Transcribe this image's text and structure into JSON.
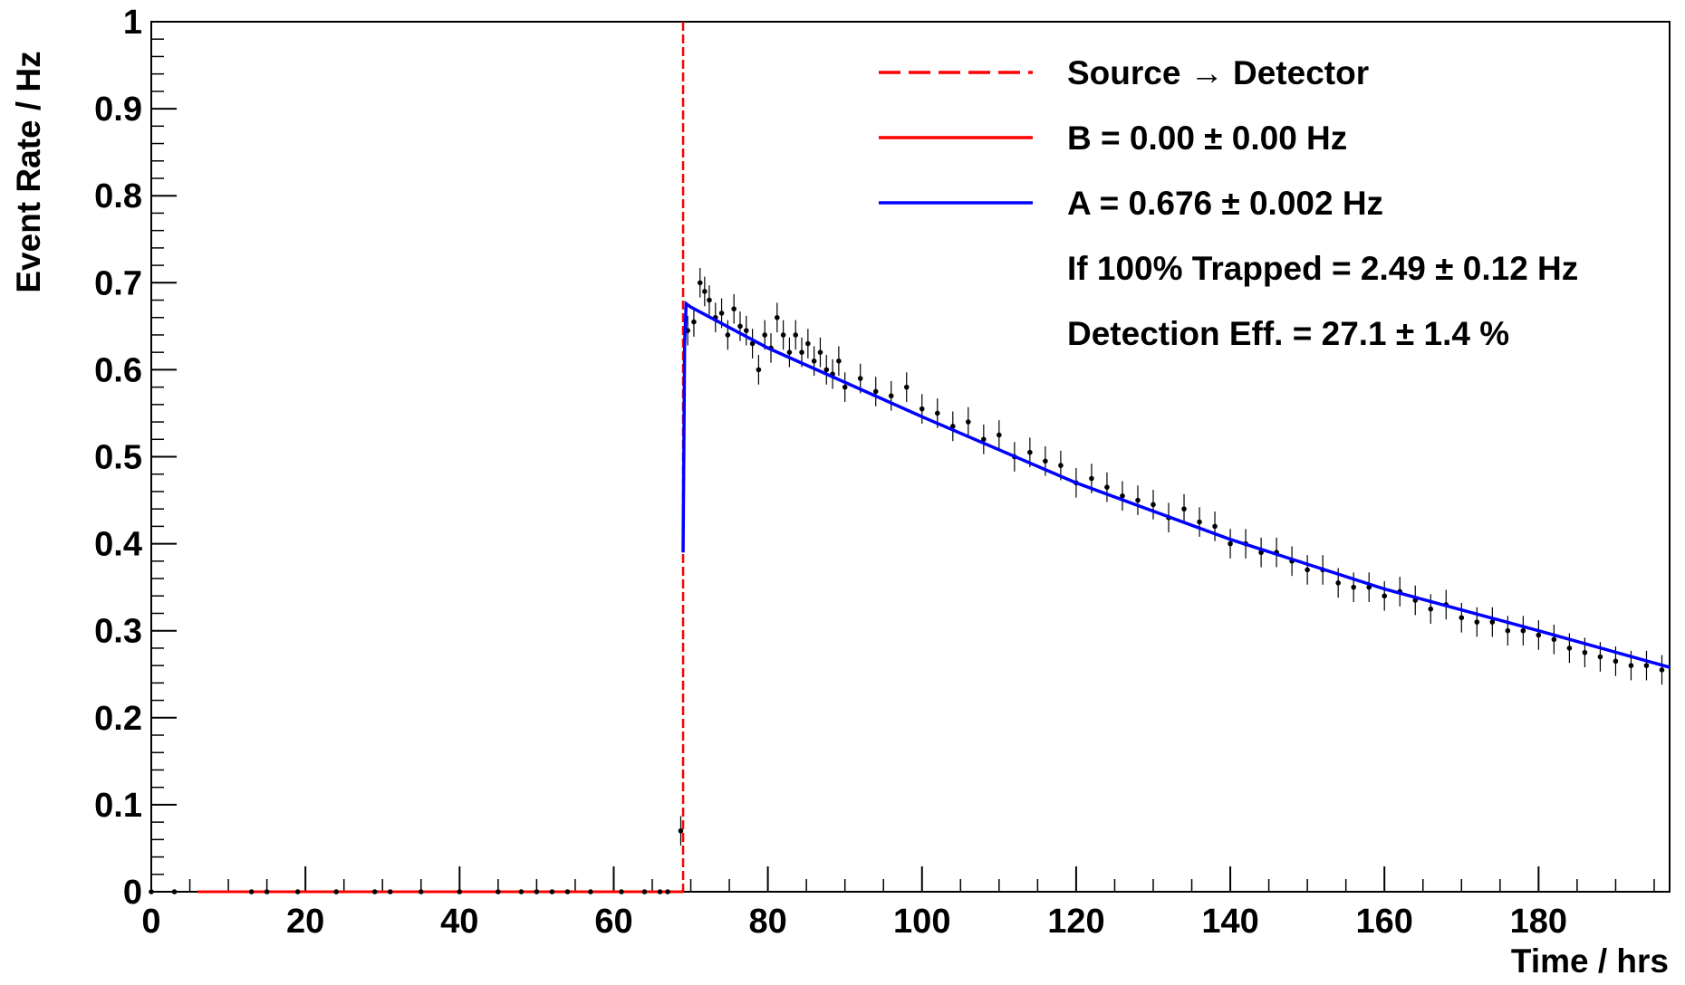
{
  "chart_data": {
    "type": "scatter",
    "title": "",
    "xlabel": "Time / hrs",
    "ylabel": "Event Rate / Hz",
    "xlim": [
      0,
      197
    ],
    "ylim": [
      0,
      1
    ],
    "x_ticks": [
      "0",
      "20",
      "40",
      "60",
      "80",
      "100",
      "120",
      "140",
      "160",
      "180"
    ],
    "y_ticks": [
      "0",
      "0.1",
      "0.2",
      "0.3",
      "0.4",
      "0.5",
      "0.6",
      "0.7",
      "0.8",
      "0.9",
      "1"
    ],
    "grid": false,
    "legend_position": "top-right",
    "legend": [
      {
        "label": "Source → Detector",
        "style": "dashed",
        "color": "#ff0000"
      },
      {
        "label": "B = 0.00 ± 0.00 Hz",
        "style": "solid",
        "color": "#ff0000"
      },
      {
        "label": "A = 0.676 ± 0.002 Hz",
        "style": "solid",
        "color": "#0000ff"
      },
      {
        "label": "If 100% Trapped = 2.49 ± 0.12 Hz",
        "style": "none"
      },
      {
        "label": "Detection Eff. = 27.1 ± 1.4 %",
        "style": "none"
      }
    ],
    "source_time": 69,
    "background_fit": {
      "name": "B = 0.00 ± 0.00 Hz",
      "color": "#ff0000",
      "x": [
        6,
        69
      ],
      "y": [
        0,
        0
      ]
    },
    "decay_fit": {
      "name": "A = 0.676 ± 0.002 Hz",
      "color": "#0000ff",
      "x": [
        69,
        69.2,
        69.4,
        70,
        80,
        100,
        120,
        140,
        160,
        180,
        197
      ],
      "y": [
        0.39,
        0.63,
        0.676,
        0.672,
        0.625,
        0.546,
        0.47,
        0.405,
        0.348,
        0.3,
        0.258
      ]
    },
    "series": [
      {
        "name": "data",
        "color": "#000000",
        "error": 0.017,
        "x": [
          0,
          3,
          13,
          15,
          19,
          24,
          29,
          31,
          35,
          40,
          45,
          48,
          50,
          52,
          54,
          57,
          61,
          64,
          66,
          67,
          68.7,
          69.6,
          70.4,
          71.2,
          71.8,
          72.4,
          73.2,
          74,
          74.8,
          75.6,
          76.4,
          77.2,
          78,
          78.8,
          79.6,
          80.4,
          81.2,
          82,
          82.8,
          83.6,
          84.4,
          85.2,
          86,
          86.8,
          87.6,
          88.4,
          89.2,
          90,
          92,
          94,
          96,
          98,
          100,
          102,
          104,
          106,
          108,
          110,
          112,
          114,
          116,
          118,
          120,
          122,
          124,
          126,
          128,
          130,
          132,
          134,
          136,
          138,
          140,
          142,
          144,
          146,
          148,
          150,
          152,
          154,
          156,
          158,
          160,
          162,
          164,
          166,
          168,
          170,
          172,
          174,
          176,
          178,
          180,
          182,
          184,
          186,
          188,
          190,
          192,
          194,
          196
        ],
        "y": [
          0,
          0,
          0,
          0,
          0,
          0,
          0,
          0,
          0,
          0,
          0,
          0,
          0,
          0,
          0,
          0,
          0,
          0,
          0,
          0,
          0.07,
          0.645,
          0.655,
          0.7,
          0.69,
          0.68,
          0.66,
          0.665,
          0.64,
          0.67,
          0.65,
          0.645,
          0.63,
          0.6,
          0.64,
          0.625,
          0.66,
          0.64,
          0.62,
          0.64,
          0.62,
          0.63,
          0.61,
          0.62,
          0.6,
          0.595,
          0.61,
          0.58,
          0.59,
          0.575,
          0.57,
          0.58,
          0.555,
          0.55,
          0.535,
          0.54,
          0.52,
          0.525,
          0.5,
          0.505,
          0.495,
          0.49,
          0.47,
          0.475,
          0.465,
          0.455,
          0.45,
          0.445,
          0.43,
          0.44,
          0.425,
          0.42,
          0.4,
          0.4,
          0.39,
          0.39,
          0.38,
          0.37,
          0.37,
          0.355,
          0.35,
          0.35,
          0.34,
          0.345,
          0.335,
          0.325,
          0.33,
          0.315,
          0.31,
          0.31,
          0.3,
          0.3,
          0.295,
          0.29,
          0.28,
          0.275,
          0.27,
          0.265,
          0.26,
          0.26,
          0.255
        ]
      }
    ]
  }
}
